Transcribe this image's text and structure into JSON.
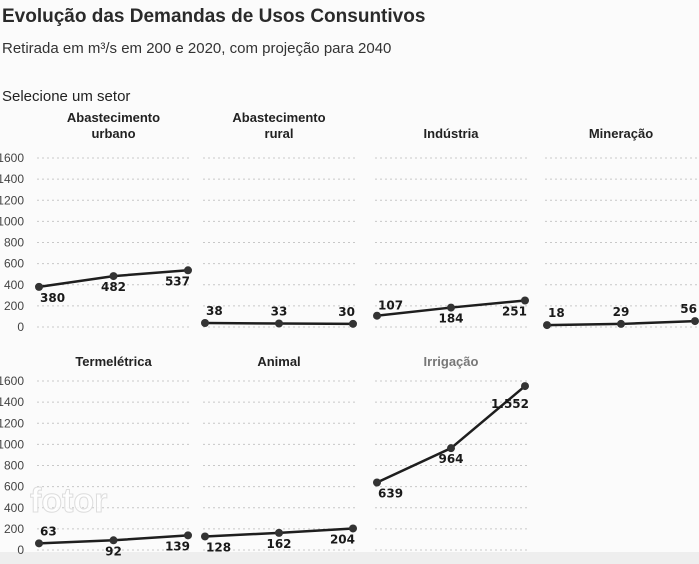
{
  "header": {
    "title": "Evolução das Demandas de Usos Consuntivos",
    "subtitle": "Retirada em m³/s em 200 e 2020, com projeção para 2040",
    "selector_label": "Selecione um setor"
  },
  "watermark": "fotor",
  "chart_data": {
    "type": "line",
    "small_multiples": true,
    "ylim": [
      0,
      1600
    ],
    "yticks": [
      "0",
      "200",
      "400",
      "600",
      "800",
      "1000",
      "1200",
      "1400",
      "1600"
    ],
    "grid": true,
    "line_color": "#1e1e1e",
    "panels": [
      {
        "title": "Abastecimento urbano",
        "values": [
          380,
          482,
          537
        ],
        "labels": [
          "380",
          "482",
          "537"
        ]
      },
      {
        "title": "Abastecimento rural",
        "values": [
          38,
          33,
          30
        ],
        "labels": [
          "38",
          "33",
          "30"
        ]
      },
      {
        "title": "Indústria",
        "values": [
          107,
          184,
          251
        ],
        "labels": [
          "107",
          "184",
          "251"
        ]
      },
      {
        "title": "Mineração",
        "values": [
          18,
          29,
          56
        ],
        "labels": [
          "18",
          "29",
          "56"
        ]
      },
      {
        "title": "Termelétrica",
        "values": [
          63,
          92,
          139
        ],
        "labels": [
          "63",
          "92",
          "139"
        ]
      },
      {
        "title": "Animal",
        "values": [
          128,
          162,
          204
        ],
        "labels": [
          "128",
          "162",
          "204"
        ]
      },
      {
        "title": "Irrigação",
        "values": [
          639,
          964,
          1552
        ],
        "labels": [
          "639",
          "964",
          "1.552"
        ]
      }
    ]
  }
}
